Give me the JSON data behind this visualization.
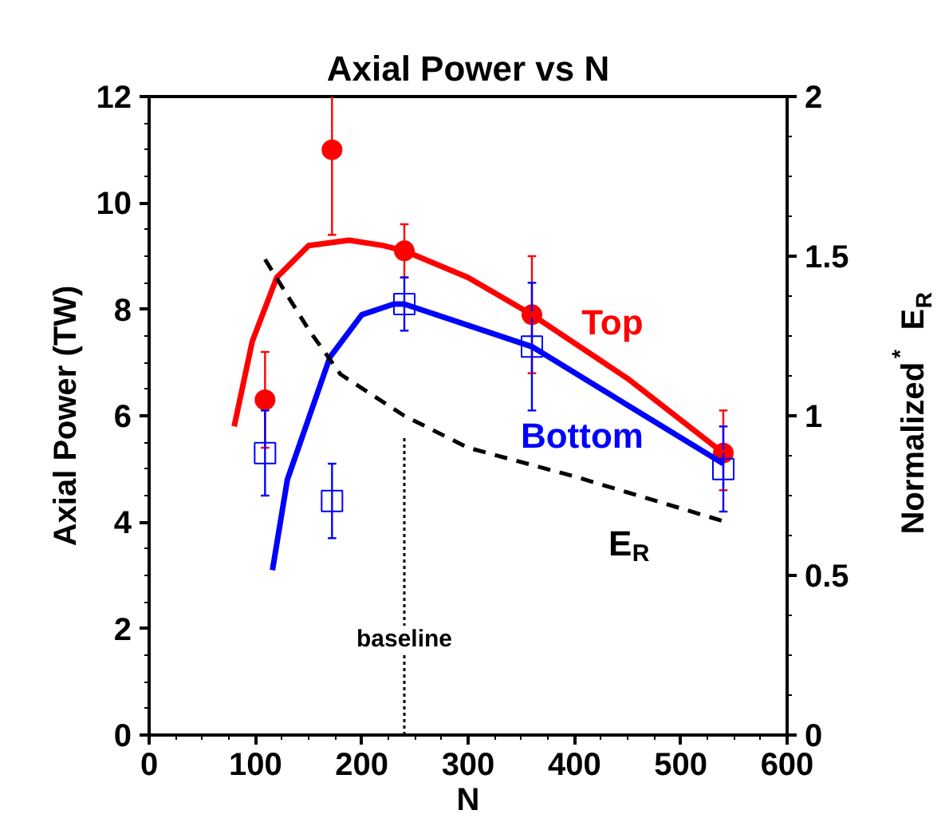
{
  "chart_data": {
    "type": "line",
    "title": "Axial Power vs N",
    "xlabel": "N",
    "ylabel": "Axial Power (TW)",
    "y2label": "Normalized$^{*}$ E$_{R}$",
    "xlim": [
      0,
      600
    ],
    "xticks": [
      0,
      100,
      200,
      300,
      400,
      500,
      600
    ],
    "ylim": [
      0,
      12
    ],
    "yticks": [
      0,
      2,
      4,
      6,
      8,
      10,
      12
    ],
    "y2lim": [
      0,
      2
    ],
    "y2ticks": [
      0,
      0.5,
      1,
      1.5,
      2
    ],
    "grid": false,
    "series": [
      {
        "type": "scatter",
        "color": "#ff0000",
        "marker": "circle",
        "x": [
          109,
          172,
          240,
          360,
          540
        ],
        "values": [
          6.3,
          11.0,
          9.1,
          7.9,
          5.3
        ],
        "errors": [
          0.9,
          [
            9.4,
            12.6
          ],
          [
            8.6,
            9.6
          ],
          [
            6.8,
            9.0
          ],
          [
            4.6,
            6.1
          ]
        ]
      },
      {
        "type": "scatter",
        "color": "#0000ff",
        "marker": "square",
        "x": [
          109,
          172,
          240,
          360,
          540
        ],
        "values": [
          5.3,
          4.4,
          8.1,
          7.3,
          5.0
        ],
        "errors": [
          [
            4.5,
            6.1
          ],
          [
            3.7,
            5.1
          ],
          [
            7.6,
            8.6
          ],
          [
            6.1,
            8.5
          ],
          [
            4.2,
            5.8
          ]
        ]
      },
      {
        "name": "Top",
        "color": "#ff0000",
        "line_style": "solid",
        "x": [
          80,
          97,
          120,
          150,
          188,
          220,
          240,
          300,
          360,
          450,
          540
        ],
        "values": [
          5.8,
          7.4,
          8.6,
          9.2,
          9.3,
          9.2,
          9.1,
          8.6,
          7.9,
          6.7,
          5.3
        ]
      },
      {
        "name": "Bottom",
        "color": "#0000ff",
        "line_style": "solid",
        "x": [
          116,
          130,
          170,
          200,
          230,
          240,
          300,
          360,
          450,
          540
        ],
        "values": [
          3.1,
          4.8,
          7.1,
          7.9,
          8.1,
          8.1,
          7.7,
          7.3,
          6.2,
          5.1
        ]
      },
      {
        "name": "E$_{R}$",
        "color": "#000000",
        "line_style": "dashed",
        "axis": "y2",
        "x": [
          109,
          150,
          180,
          240,
          300,
          400,
          450,
          540
        ],
        "values": [
          1.49,
          1.27,
          1.13,
          1.0,
          0.9,
          0.81,
          0.76,
          0.67
        ]
      }
    ],
    "ref_lines": [
      {
        "axis": "x",
        "value": 240,
        "label": "baseline",
        "color": "#000000",
        "line_style": "dotted"
      }
    ]
  }
}
